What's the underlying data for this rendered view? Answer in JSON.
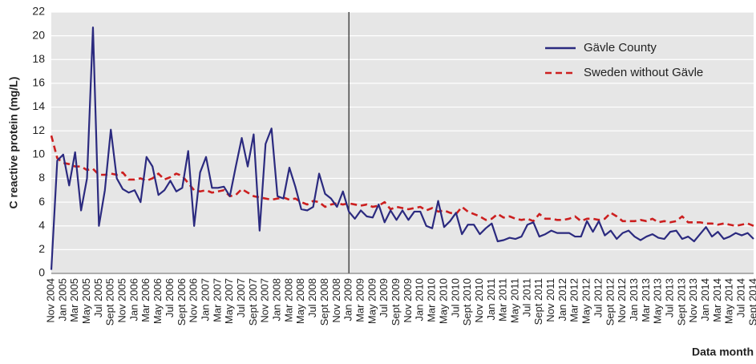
{
  "chart_data": {
    "type": "line",
    "y_label": "C reactive protein (mg/L)",
    "x_label": "Data month",
    "categories": [
      "Nov 2004",
      null,
      "Jan 2005",
      null,
      "Mar 2005",
      null,
      "May 2005",
      null,
      "Jul 2005",
      null,
      "Sept 2005",
      null,
      "Nov 2005",
      null,
      "Jan 2006",
      null,
      "Mar 2006",
      null,
      "May 2006",
      null,
      "Jul 2006",
      null,
      "Sept 2006",
      null,
      "Nov 2006",
      null,
      "Jan 2007",
      null,
      "Mar 2007",
      null,
      "May 2007",
      null,
      "Jul 2007",
      null,
      "Sept 2007",
      null,
      "Nov 2007",
      null,
      "Jan 2008",
      null,
      "Mar 2008",
      null,
      "May 2008",
      null,
      "Jul 2008",
      null,
      "Sept 2008",
      null,
      "Nov 2008",
      null,
      "Jan 2009",
      null,
      "Mar 2009",
      null,
      "May 2009",
      null,
      "Jul 2009",
      null,
      "Sept 2009",
      null,
      "Nov 2009",
      null,
      "Jan 2010",
      null,
      "Mar 2010",
      null,
      "May 2010",
      null,
      "Jul 2010",
      null,
      "Sept 2010",
      null,
      "Nov 2010",
      null,
      "Jan 2011",
      null,
      "Mar 2011",
      null,
      "May 2011",
      null,
      "Jul 2011",
      null,
      "Sept 2011",
      null,
      "Nov 2011",
      null,
      "Jan 2012",
      null,
      "Mar 2012",
      null,
      "May 2012",
      null,
      "Jul 2012",
      null,
      "Sept 2012",
      null,
      "Nov 2012",
      null,
      "Jan 2013",
      null,
      "Mar 2013",
      null,
      "May 2013",
      null,
      "Jul 2013",
      null,
      "Sept 2013",
      null,
      "Nov 2013",
      null,
      "Jan 2014",
      null,
      "Mar 2014",
      null,
      "May 2014",
      null,
      "Jul 2014",
      null,
      "Sept 2014"
    ],
    "series": [
      {
        "name": "Gävle County",
        "color": "#2b2a7f",
        "dash": "solid",
        "values": [
          0.3,
          9.5,
          10,
          7.4,
          10.2,
          5.3,
          8,
          20.7,
          4,
          7,
          12.1,
          8,
          7.1,
          6.8,
          7,
          6,
          9.8,
          9,
          6.6,
          7,
          7.8,
          6.9,
          7.2,
          10.3,
          4,
          8.5,
          9.8,
          7.2,
          7.2,
          7.3,
          6.5,
          9,
          11.4,
          9,
          11.7,
          3.6,
          10.9,
          12.2,
          6.5,
          6.3,
          8.9,
          7.3,
          5.4,
          5.3,
          5.6,
          8.4,
          6.7,
          6.3,
          5.6,
          6.9,
          5.2,
          4.6,
          5.3,
          4.8,
          4.7,
          5.8,
          4.3,
          5.3,
          4.5,
          5.3,
          4.5,
          5.2,
          5.2,
          4.0,
          3.8,
          6.1,
          3.9,
          4.4,
          5.1,
          3.3,
          4.1,
          4.1,
          3.3,
          3.8,
          4.2,
          2.7,
          2.8,
          3.0,
          2.9,
          3.1,
          4.1,
          4.3,
          3.1,
          3.3,
          3.6,
          3.4,
          3.4,
          3.4,
          3.1,
          3.1,
          4.4,
          3.5,
          4.4,
          3.2,
          3.6,
          2.9,
          3.4,
          3.6,
          3.1,
          2.8,
          3.1,
          3.3,
          3.0,
          2.9,
          3.5,
          3.6,
          2.9,
          3.1,
          2.7,
          3.3,
          3.9,
          3.1,
          3.5,
          2.9,
          3.1,
          3.4,
          3.2,
          3.4,
          2.9
        ]
      },
      {
        "name": "Sweden without Gävle",
        "color": "#cc1f1f",
        "dash": "dashed",
        "values": [
          11.6,
          9.7,
          9.3,
          9.2,
          9.0,
          9.0,
          8.7,
          8.8,
          8.3,
          8.3,
          8.4,
          8.3,
          8.5,
          7.9,
          7.9,
          8.0,
          7.8,
          8.0,
          8.4,
          7.9,
          8.1,
          8.4,
          8.2,
          7.6,
          7.0,
          6.9,
          7.0,
          6.8,
          6.9,
          7.0,
          6.5,
          6.6,
          7.1,
          6.8,
          6.5,
          6.4,
          6.3,
          6.2,
          6.3,
          6.4,
          6.2,
          6.3,
          6.0,
          5.8,
          6.1,
          6.0,
          5.6,
          5.8,
          5.9,
          5.8,
          5.9,
          5.8,
          5.7,
          5.8,
          5.6,
          5.7,
          6.0,
          5.4,
          5.6,
          5.5,
          5.4,
          5.5,
          5.6,
          5.3,
          5.5,
          5.2,
          5.3,
          5.1,
          5.0,
          5.6,
          5.2,
          5.0,
          4.8,
          4.5,
          4.6,
          5.0,
          4.7,
          4.8,
          4.6,
          4.5,
          4.6,
          4.4,
          5.0,
          4.6,
          4.6,
          4.5,
          4.5,
          4.6,
          4.8,
          4.4,
          4.6,
          4.6,
          4.5,
          4.6,
          5.1,
          4.8,
          4.4,
          4.4,
          4.4,
          4.5,
          4.4,
          4.6,
          4.3,
          4.4,
          4.3,
          4.4,
          4.8,
          4.3,
          4.3,
          4.3,
          4.2,
          4.2,
          4.1,
          4.2,
          4.1,
          4.0,
          4.1,
          4.2,
          4.0
        ]
      }
    ],
    "ylim": [
      0,
      22
    ],
    "yticks": [
      0,
      2,
      4,
      6,
      8,
      10,
      12,
      14,
      16,
      18,
      20,
      22
    ],
    "grid": true,
    "legend": "upper right"
  }
}
